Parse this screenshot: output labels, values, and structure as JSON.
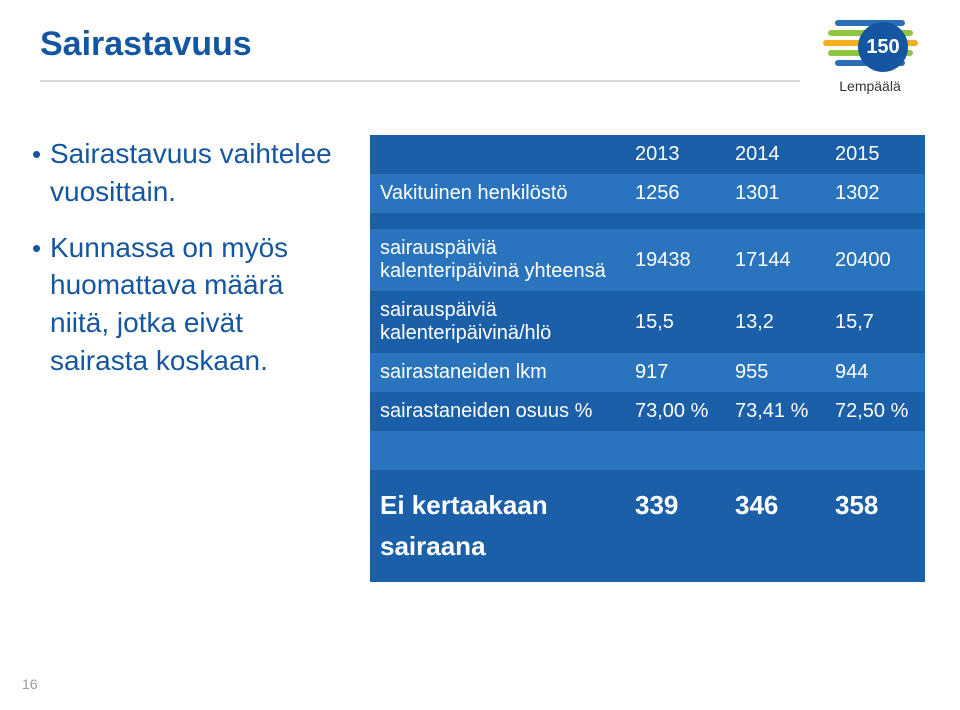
{
  "title": "Sairastavuus",
  "logo": {
    "badge": "150",
    "text": "Lempäälä"
  },
  "bullets": [
    "Sairastavuus vaihtelee vuosittain.",
    "Kunnassa on myös huomattava määrä niitä, jotka eivät sairasta koskaan."
  ],
  "table": {
    "headers": [
      "",
      "2013",
      "2014",
      "2015"
    ],
    "rows": [
      {
        "label": "Vakituinen henkilöstö",
        "cells": [
          "1256",
          "1301",
          "1302"
        ],
        "alt": true
      },
      {
        "label": "",
        "cells": [
          "",
          "",
          ""
        ],
        "alt": false
      },
      {
        "label": "sairauspäiviä kalenteripäivinä yhteensä",
        "cells": [
          "19438",
          "17144",
          "20400"
        ],
        "alt": true
      },
      {
        "label": "sairauspäiviä kalenteripäivinä/hlö",
        "cells": [
          "15,5",
          "13,2",
          "15,7"
        ],
        "alt": false
      },
      {
        "label": "sairastaneiden lkm",
        "cells": [
          "917",
          "955",
          "944"
        ],
        "alt": true
      },
      {
        "label": "sairastaneiden osuus %",
        "cells": [
          "73,00 %",
          "73,41 %",
          "72,50 %"
        ],
        "alt": false
      },
      {
        "label": "",
        "cells": [
          "",
          "",
          ""
        ],
        "alt": true
      }
    ],
    "summary": {
      "label1": "Ei kertaakaan",
      "label2": "sairaana",
      "cells": [
        "339",
        "346",
        "358"
      ]
    }
  },
  "pageNumber": "16",
  "colors": {
    "title": "#1556a0",
    "tableHeader": "#1b5fa8",
    "tableAlt": "#2974bd",
    "underline": "#dadada"
  }
}
